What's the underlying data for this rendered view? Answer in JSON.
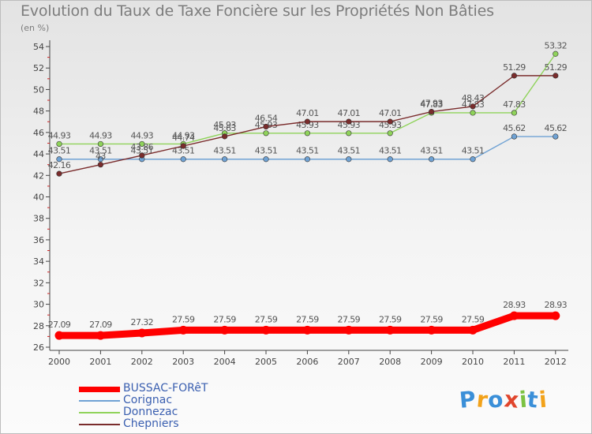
{
  "title": "Evolution du Taux de Taxe Foncière sur les Propriétés Non Bâties",
  "unit_label": "(en %)",
  "logo": {
    "text": "Proxiti",
    "colors": [
      "#3a8fd8",
      "#f2a21a",
      "#3a8fd8",
      "#e0452c",
      "#7cc242",
      "#3a8fd8",
      "#f2a21a"
    ]
  },
  "chart_data": {
    "type": "line",
    "title": "Evolution du Taux de Taxe Foncière sur les Propriétés Non Bâties",
    "ylabel": "(en %)",
    "xlabel": "",
    "x": [
      "2000",
      "2001",
      "2002",
      "2003",
      "2004",
      "2005",
      "2006",
      "2007",
      "2008",
      "2009",
      "2010",
      "2011",
      "2012"
    ],
    "ylim": [
      26,
      54
    ],
    "yticks": [
      26,
      28,
      30,
      32,
      34,
      36,
      38,
      40,
      42,
      44,
      46,
      48,
      50,
      52,
      54
    ],
    "grid": false,
    "legend_position": "bottom-left",
    "series": [
      {
        "name": "BUSSAC-FORêT",
        "color": "#ff0000",
        "values": [
          27.09,
          27.09,
          27.32,
          27.59,
          27.59,
          27.59,
          27.59,
          27.59,
          27.59,
          27.59,
          27.59,
          28.93,
          28.93
        ],
        "labels": [
          "27.09",
          "27.09",
          "27.32",
          "27.59",
          "27.59",
          "27.59",
          "27.59",
          "27.59",
          "27.59",
          "27.59",
          "27.59",
          "28.93",
          "28.93"
        ]
      },
      {
        "name": "Corignac",
        "color": "#6fa2d4",
        "values": [
          43.51,
          43.51,
          43.51,
          43.51,
          43.51,
          43.51,
          43.51,
          43.51,
          43.51,
          43.51,
          43.51,
          45.62,
          45.62
        ],
        "labels": [
          "43.51",
          "43.51",
          "43.51",
          "43.51",
          "43.51",
          "43.51",
          "43.51",
          "43.51",
          "43.51",
          "43.51",
          "43.51",
          "45.62",
          "45.62"
        ]
      },
      {
        "name": "Donnezac",
        "color": "#8fd35a",
        "values": [
          44.93,
          44.93,
          44.93,
          44.93,
          45.93,
          45.93,
          45.93,
          45.93,
          45.93,
          47.83,
          47.83,
          47.83,
          53.32
        ],
        "labels": [
          "44.93",
          "44.93",
          "44.93",
          "44.93",
          "45.93",
          "45.93",
          "45.93",
          "45.93",
          "45.93",
          "47.83",
          "47.83",
          "47.83",
          "53.32"
        ]
      },
      {
        "name": "Chepniers",
        "color": "#7a2c2c",
        "values": [
          42.16,
          43,
          43.86,
          44.74,
          45.63,
          46.54,
          47.01,
          47.01,
          47.01,
          47.93,
          48.43,
          51.29,
          51.29
        ],
        "labels": [
          "42.16",
          "43",
          "43.86",
          "44.74",
          "45.63",
          "46.54",
          "47.01",
          "47.01",
          "47.01",
          "47.93",
          "48.43",
          "51.29",
          "51.29"
        ]
      }
    ]
  }
}
